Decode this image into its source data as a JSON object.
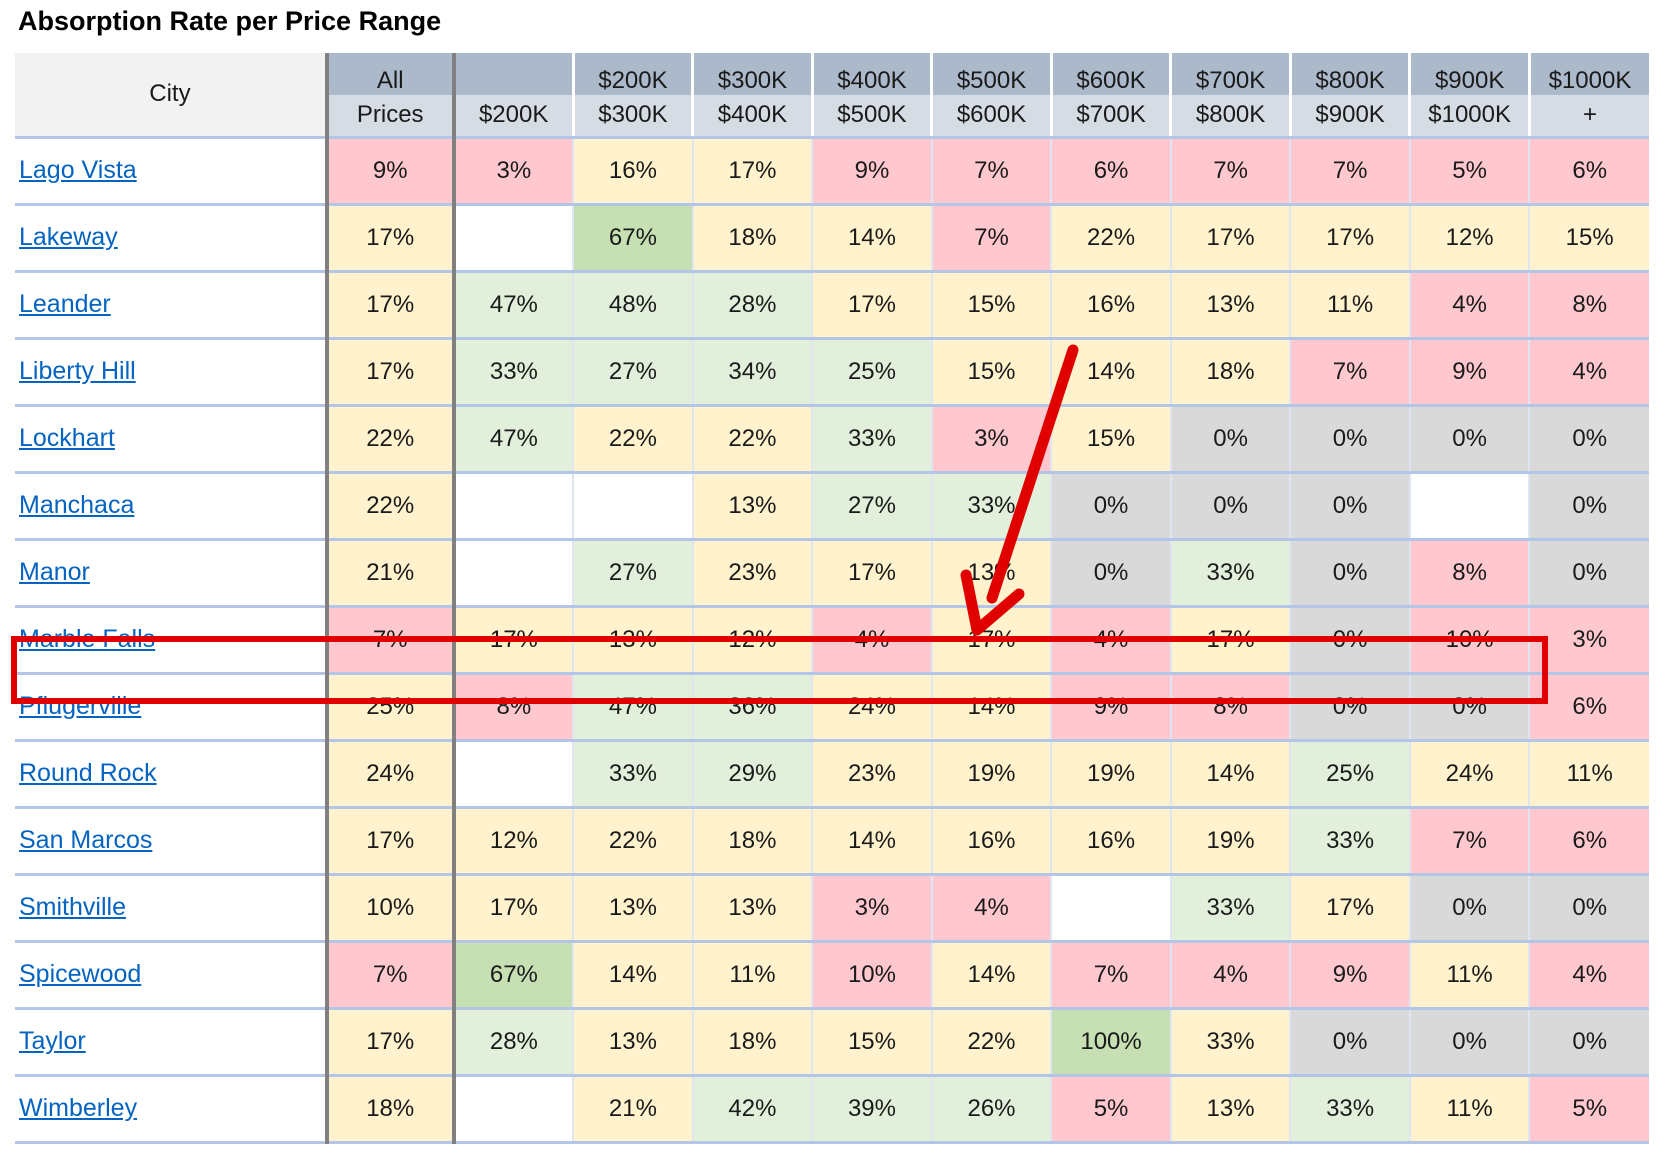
{
  "title": "Absorption Rate per Price Range",
  "header": {
    "city_label": "City",
    "row1": [
      "All",
      "",
      "$200K",
      "$300K",
      "$400K",
      "$500K",
      "$600K",
      "$700K",
      "$800K",
      "$900K",
      "$1000K"
    ],
    "row2": [
      "Prices",
      "$200K",
      "$300K",
      "$400K",
      "$500K",
      "$600K",
      "$700K",
      "$800K",
      "$900K",
      "$1000K",
      "+"
    ]
  },
  "rows": [
    {
      "city": "Lago Vista",
      "values": [
        "9%",
        "3%",
        "16%",
        "17%",
        "9%",
        "7%",
        "6%",
        "7%",
        "7%",
        "5%",
        "6%"
      ],
      "colors": [
        "red",
        "red",
        "yel",
        "yel",
        "red",
        "red",
        "red",
        "red",
        "red",
        "red",
        "red"
      ]
    },
    {
      "city": "Lakeway",
      "values": [
        "17%",
        "",
        "67%",
        "18%",
        "14%",
        "7%",
        "22%",
        "17%",
        "17%",
        "12%",
        "15%"
      ],
      "colors": [
        "yel",
        "wht",
        "grn",
        "yel",
        "yel",
        "red",
        "yel",
        "yel",
        "yel",
        "yel",
        "yel"
      ]
    },
    {
      "city": "Leander",
      "values": [
        "17%",
        "47%",
        "48%",
        "28%",
        "17%",
        "15%",
        "16%",
        "13%",
        "11%",
        "4%",
        "8%"
      ],
      "colors": [
        "yel",
        "lgr",
        "lgr",
        "lgr",
        "yel",
        "yel",
        "yel",
        "yel",
        "yel",
        "red",
        "red"
      ]
    },
    {
      "city": "Liberty Hill",
      "values": [
        "17%",
        "33%",
        "27%",
        "34%",
        "25%",
        "15%",
        "14%",
        "18%",
        "7%",
        "9%",
        "4%"
      ],
      "colors": [
        "yel",
        "lgr",
        "lgr",
        "lgr",
        "lgr",
        "yel",
        "yel",
        "yel",
        "red",
        "red",
        "red"
      ]
    },
    {
      "city": "Lockhart",
      "values": [
        "22%",
        "47%",
        "22%",
        "22%",
        "33%",
        "3%",
        "15%",
        "0%",
        "0%",
        "0%",
        "0%"
      ],
      "colors": [
        "yel",
        "lgr",
        "yel",
        "yel",
        "lgr",
        "red",
        "yel",
        "gry",
        "gry",
        "gry",
        "gry"
      ]
    },
    {
      "city": "Manchaca",
      "values": [
        "22%",
        "",
        "",
        "13%",
        "27%",
        "33%",
        "0%",
        "0%",
        "0%",
        "",
        "0%"
      ],
      "colors": [
        "yel",
        "wht",
        "wht",
        "yel",
        "lgr",
        "lgr",
        "gry",
        "gry",
        "gry",
        "wht",
        "gry"
      ]
    },
    {
      "city": "Manor",
      "values": [
        "21%",
        "",
        "27%",
        "23%",
        "17%",
        "13%",
        "0%",
        "33%",
        "0%",
        "8%",
        "0%"
      ],
      "colors": [
        "yel",
        "wht",
        "lgr",
        "yel",
        "yel",
        "yel",
        "gry",
        "lgr",
        "gry",
        "red",
        "gry"
      ]
    },
    {
      "city": "Marble Falls",
      "values": [
        "7%",
        "17%",
        "13%",
        "12%",
        "4%",
        "17%",
        "4%",
        "17%",
        "0%",
        "10%",
        "3%"
      ],
      "colors": [
        "red",
        "yel",
        "yel",
        "yel",
        "red",
        "yel",
        "red",
        "yel",
        "gry",
        "red",
        "red"
      ]
    },
    {
      "city": "Pflugerville",
      "values": [
        "25%",
        "8%",
        "47%",
        "36%",
        "24%",
        "14%",
        "9%",
        "8%",
        "0%",
        "0%",
        "6%"
      ],
      "colors": [
        "yel",
        "red",
        "lgr",
        "lgr",
        "yel",
        "yel",
        "red",
        "red",
        "gry",
        "gry",
        "red"
      ]
    },
    {
      "city": "Round Rock",
      "values": [
        "24%",
        "",
        "33%",
        "29%",
        "23%",
        "19%",
        "19%",
        "14%",
        "25%",
        "24%",
        "11%"
      ],
      "colors": [
        "yel",
        "wht",
        "lgr",
        "lgr",
        "yel",
        "yel",
        "yel",
        "yel",
        "lgr",
        "yel",
        "yel"
      ]
    },
    {
      "city": "San Marcos",
      "values": [
        "17%",
        "12%",
        "22%",
        "18%",
        "14%",
        "16%",
        "16%",
        "19%",
        "33%",
        "7%",
        "6%"
      ],
      "colors": [
        "yel",
        "yel",
        "yel",
        "yel",
        "yel",
        "yel",
        "yel",
        "yel",
        "lgr",
        "red",
        "red"
      ]
    },
    {
      "city": "Smithville",
      "values": [
        "10%",
        "17%",
        "13%",
        "13%",
        "3%",
        "4%",
        "",
        "33%",
        "17%",
        "0%",
        "0%"
      ],
      "colors": [
        "yel",
        "yel",
        "yel",
        "yel",
        "red",
        "red",
        "wht",
        "lgr",
        "yel",
        "gry",
        "gry"
      ]
    },
    {
      "city": "Spicewood",
      "values": [
        "7%",
        "67%",
        "14%",
        "11%",
        "10%",
        "14%",
        "7%",
        "4%",
        "9%",
        "11%",
        "4%"
      ],
      "colors": [
        "red",
        "grn",
        "yel",
        "yel",
        "red",
        "yel",
        "red",
        "red",
        "red",
        "yel",
        "red"
      ]
    },
    {
      "city": "Taylor",
      "values": [
        "17%",
        "28%",
        "13%",
        "18%",
        "15%",
        "22%",
        "100%",
        "33%",
        "0%",
        "0%",
        "0%"
      ],
      "colors": [
        "yel",
        "lgr",
        "yel",
        "yel",
        "yel",
        "yel",
        "grn",
        "yel",
        "gry",
        "gry",
        "gry"
      ]
    },
    {
      "city": "Wimberley",
      "values": [
        "18%",
        "",
        "21%",
        "42%",
        "39%",
        "26%",
        "5%",
        "13%",
        "33%",
        "11%",
        "5%"
      ],
      "colors": [
        "yel",
        "wht",
        "yel",
        "lgr",
        "lgr",
        "lgr",
        "red",
        "yel",
        "lgr",
        "yel",
        "red"
      ]
    }
  ],
  "annotation": {
    "highlight_color": "#e00000",
    "highlighted_city": "Pflugerville"
  }
}
